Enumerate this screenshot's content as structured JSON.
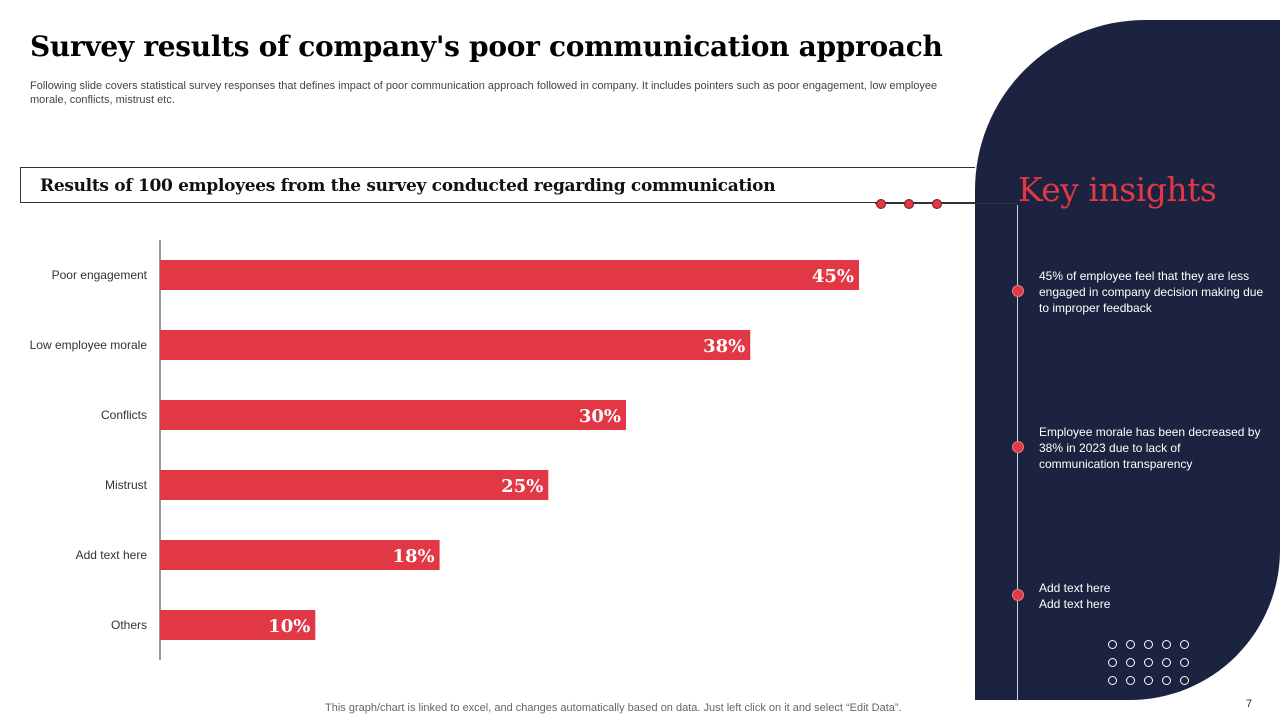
{
  "header": {
    "title": "Survey results of company's poor communication approach",
    "subtitle": "Following slide covers statistical survey responses that defines impact of poor communication approach followed in company. It includes pointers such as poor engagement, low employee morale, conflicts, mistrust etc."
  },
  "banner": {
    "text": "Results of 100 employees from the survey conducted regarding communication"
  },
  "insights": {
    "title": "Key insights",
    "items": [
      "45% of employee feel that they are less engaged in company decision making due to improper feedback",
      "Employee morale has been decreased by 38% in 2023 due to lack of communication transparency",
      "Add text here\nAdd text here"
    ]
  },
  "chart_data": {
    "type": "bar",
    "orientation": "horizontal",
    "title": "Results of 100 employees from the survey conducted regarding communication",
    "categories": [
      "Poor engagement",
      "Low employee morale",
      "Conflicts",
      "Mistrust",
      "Add text here",
      "Others"
    ],
    "values": [
      45,
      38,
      30,
      25,
      18,
      10
    ],
    "value_labels": [
      "45%",
      "38%",
      "30%",
      "25%",
      "18%",
      "10%"
    ],
    "xlim": [
      0,
      45
    ],
    "xlabel": "",
    "ylabel": "",
    "bar_color": "#e23744",
    "grid": false
  },
  "colors": {
    "accent": "#e23744",
    "dark_panel": "#1b2340"
  },
  "footer": {
    "note": "This graph/chart is linked to excel,  and changes automatically based on data. Just left click on it and select “Edit Data”.",
    "page_number": "7"
  }
}
